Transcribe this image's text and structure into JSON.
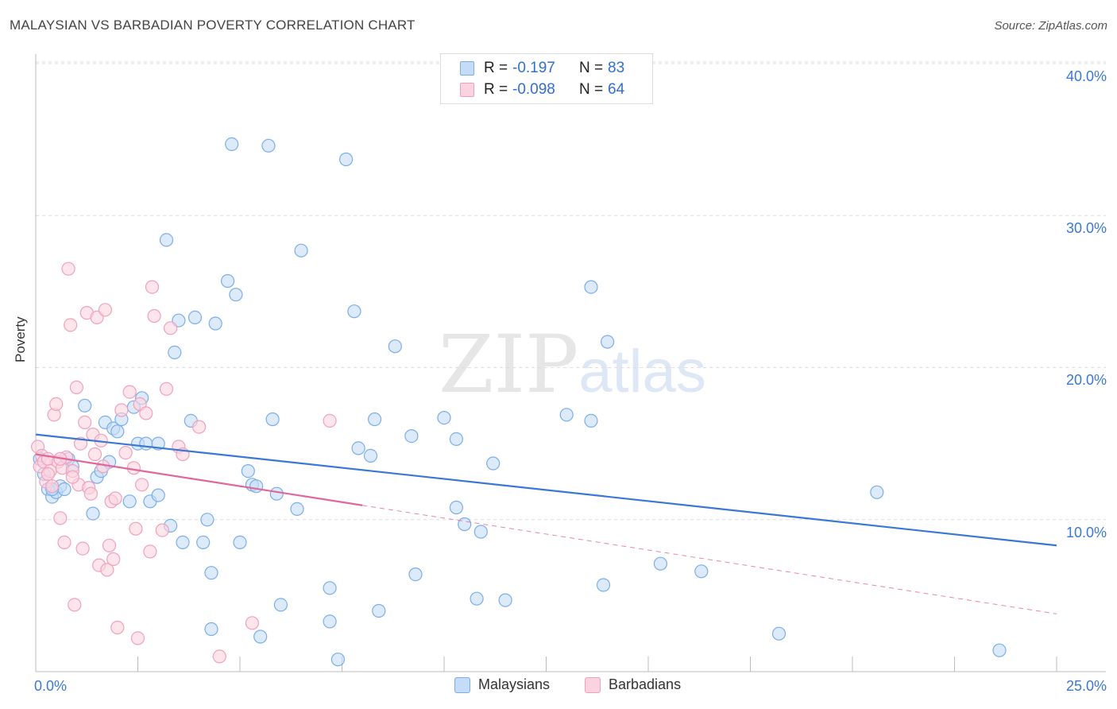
{
  "header": {
    "title": "MALAYSIAN VS BARBADIAN POVERTY CORRELATION CHART",
    "source": "Source: ZipAtlas.com"
  },
  "watermark": {
    "zip": "ZIP",
    "atlas": "atlas"
  },
  "legend": {
    "rows": [
      {
        "r_label": "R =",
        "r_value": "-0.197",
        "n_label": "N =",
        "n_value": "83",
        "color": "#7aaee8",
        "fill": "#c4dcf7"
      },
      {
        "r_label": "R =",
        "r_value": "-0.098",
        "n_label": "N =",
        "n_value": "64",
        "color": "#f0a0bc",
        "fill": "#fbd3e0"
      }
    ]
  },
  "bottom_legend": {
    "items": [
      {
        "label": "Malaysians",
        "color": "#7aaee8",
        "fill": "#c4dcf7"
      },
      {
        "label": "Barbadians",
        "color": "#f0a0bc",
        "fill": "#fbd3e0"
      }
    ]
  },
  "chart_data": {
    "type": "scatter",
    "title": "MALAYSIAN VS BARBADIAN POVERTY CORRELATION CHART",
    "xlabel": "",
    "ylabel": "Poverty",
    "xlim": [
      0,
      25
    ],
    "ylim": [
      0,
      40
    ],
    "x_tick_labels": [
      "0.0%",
      "25.0%"
    ],
    "y_ticks": [
      10,
      20,
      30,
      40
    ],
    "y_tick_labels": [
      "10.0%",
      "20.0%",
      "30.0%",
      "40.0%"
    ],
    "grid": true,
    "legend_position": "top-center",
    "series": [
      {
        "name": "Malaysians",
        "color": "#3a78d4",
        "fill": "#c4dcf7",
        "stroke": "#7aaee8",
        "trend": {
          "x0": 0.0,
          "y0": 15.6,
          "x1": 25.0,
          "y1": 8.3,
          "dash_from_x": 25.0
        },
        "points": [
          [
            0.1,
            14.0
          ],
          [
            0.2,
            13.0
          ],
          [
            0.3,
            12.0
          ],
          [
            0.4,
            11.5
          ],
          [
            0.5,
            11.8
          ],
          [
            0.6,
            12.2
          ],
          [
            0.7,
            12.0
          ],
          [
            0.8,
            14.0
          ],
          [
            0.9,
            13.5
          ],
          [
            1.2,
            17.5
          ],
          [
            1.4,
            10.4
          ],
          [
            1.5,
            12.8
          ],
          [
            1.6,
            13.2
          ],
          [
            1.7,
            16.4
          ],
          [
            1.8,
            13.8
          ],
          [
            1.9,
            16.0
          ],
          [
            2.0,
            15.8
          ],
          [
            2.1,
            16.6
          ],
          [
            2.3,
            11.2
          ],
          [
            2.4,
            17.4
          ],
          [
            2.5,
            15.0
          ],
          [
            2.6,
            18.0
          ],
          [
            2.7,
            15.0
          ],
          [
            2.8,
            11.2
          ],
          [
            3.0,
            11.6
          ],
          [
            3.0,
            15.0
          ],
          [
            3.2,
            28.4
          ],
          [
            3.3,
            9.6
          ],
          [
            3.4,
            21.0
          ],
          [
            3.5,
            23.1
          ],
          [
            3.6,
            8.5
          ],
          [
            3.8,
            16.5
          ],
          [
            3.9,
            23.3
          ],
          [
            4.1,
            8.5
          ],
          [
            4.2,
            10.0
          ],
          [
            4.3,
            2.8
          ],
          [
            4.3,
            6.5
          ],
          [
            4.4,
            22.9
          ],
          [
            4.7,
            25.7
          ],
          [
            4.8,
            34.7
          ],
          [
            4.9,
            24.8
          ],
          [
            5.0,
            8.5
          ],
          [
            5.2,
            13.2
          ],
          [
            5.3,
            12.3
          ],
          [
            5.4,
            12.2
          ],
          [
            5.5,
            2.3
          ],
          [
            5.7,
            34.6
          ],
          [
            5.8,
            16.6
          ],
          [
            5.9,
            11.7
          ],
          [
            6.0,
            4.4
          ],
          [
            6.4,
            10.7
          ],
          [
            6.5,
            27.7
          ],
          [
            7.2,
            5.5
          ],
          [
            7.2,
            3.3
          ],
          [
            7.4,
            0.8
          ],
          [
            7.6,
            33.7
          ],
          [
            7.8,
            23.7
          ],
          [
            7.9,
            14.7
          ],
          [
            8.2,
            14.2
          ],
          [
            8.3,
            16.6
          ],
          [
            8.4,
            4.0
          ],
          [
            8.8,
            21.4
          ],
          [
            9.2,
            15.5
          ],
          [
            9.3,
            6.4
          ],
          [
            10.0,
            16.7
          ],
          [
            10.3,
            15.3
          ],
          [
            10.3,
            10.8
          ],
          [
            10.5,
            9.7
          ],
          [
            10.8,
            4.8
          ],
          [
            10.9,
            9.2
          ],
          [
            11.2,
            13.7
          ],
          [
            11.5,
            4.7
          ],
          [
            13.0,
            16.9
          ],
          [
            13.6,
            16.5
          ],
          [
            13.6,
            25.3
          ],
          [
            13.9,
            5.7
          ],
          [
            14.0,
            21.7
          ],
          [
            15.3,
            7.1
          ],
          [
            16.3,
            6.6
          ],
          [
            18.2,
            2.5
          ],
          [
            20.6,
            11.8
          ],
          [
            23.6,
            1.4
          ],
          [
            0.4,
            12.0
          ]
        ]
      },
      {
        "name": "Barbadians",
        "color": "#e0679a",
        "fill": "#fbd3e0",
        "stroke": "#f0a0bc",
        "trend": {
          "x0": 0.0,
          "y0": 14.3,
          "x1": 25.0,
          "y1": 3.8,
          "dash_from_x": 8.0
        },
        "points": [
          [
            0.05,
            14.8
          ],
          [
            0.1,
            13.5
          ],
          [
            0.15,
            14.2
          ],
          [
            0.2,
            13.8
          ],
          [
            0.25,
            12.5
          ],
          [
            0.3,
            14.0
          ],
          [
            0.35,
            13.2
          ],
          [
            0.4,
            12.2
          ],
          [
            0.45,
            16.9
          ],
          [
            0.5,
            17.6
          ],
          [
            0.55,
            13.8
          ],
          [
            0.6,
            10.1
          ],
          [
            0.65,
            13.4
          ],
          [
            0.7,
            8.5
          ],
          [
            0.75,
            14.1
          ],
          [
            0.8,
            26.5
          ],
          [
            0.85,
            22.8
          ],
          [
            0.9,
            13.2
          ],
          [
            0.95,
            4.4
          ],
          [
            1.0,
            18.7
          ],
          [
            1.05,
            12.3
          ],
          [
            1.1,
            15.0
          ],
          [
            1.15,
            8.1
          ],
          [
            1.2,
            16.4
          ],
          [
            1.25,
            23.6
          ],
          [
            1.3,
            12.1
          ],
          [
            1.35,
            11.7
          ],
          [
            1.4,
            15.6
          ],
          [
            1.45,
            14.3
          ],
          [
            1.5,
            23.3
          ],
          [
            1.55,
            7.0
          ],
          [
            1.6,
            15.2
          ],
          [
            1.65,
            13.5
          ],
          [
            1.7,
            23.8
          ],
          [
            1.75,
            6.7
          ],
          [
            1.8,
            8.3
          ],
          [
            1.85,
            11.2
          ],
          [
            1.9,
            7.4
          ],
          [
            1.95,
            11.4
          ],
          [
            2.0,
            2.9
          ],
          [
            2.1,
            17.2
          ],
          [
            2.2,
            14.4
          ],
          [
            2.3,
            18.4
          ],
          [
            2.4,
            13.4
          ],
          [
            2.45,
            9.4
          ],
          [
            2.5,
            2.2
          ],
          [
            2.55,
            17.6
          ],
          [
            2.6,
            12.3
          ],
          [
            2.7,
            17.0
          ],
          [
            2.8,
            7.9
          ],
          [
            2.85,
            25.3
          ],
          [
            2.9,
            23.4
          ],
          [
            3.1,
            9.3
          ],
          [
            3.2,
            18.6
          ],
          [
            3.3,
            22.6
          ],
          [
            3.5,
            14.8
          ],
          [
            3.6,
            14.3
          ],
          [
            4.0,
            16.1
          ],
          [
            4.5,
            1.0
          ],
          [
            5.3,
            3.2
          ],
          [
            7.2,
            16.5
          ],
          [
            0.3,
            13.0
          ],
          [
            0.6,
            14.0
          ],
          [
            0.9,
            12.8
          ]
        ]
      }
    ]
  }
}
